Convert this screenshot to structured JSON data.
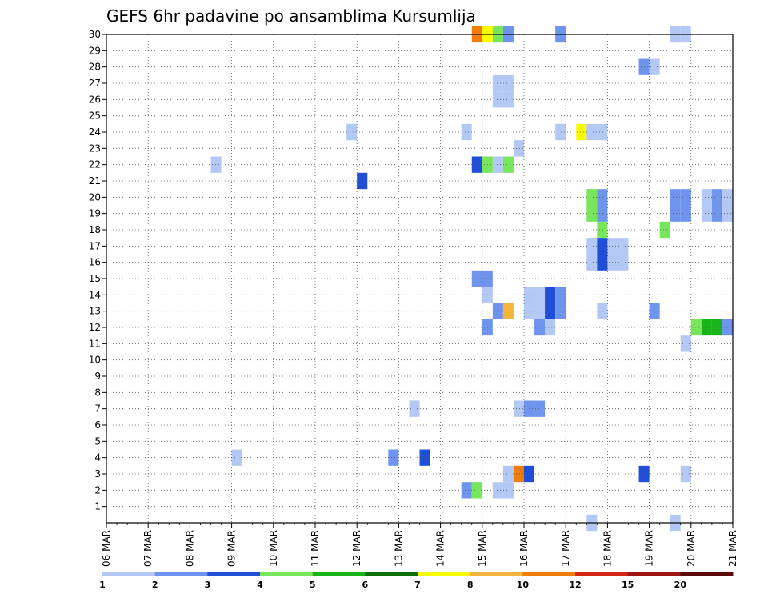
{
  "chart_data": {
    "type": "heatmap",
    "title": "GEFS 6hr padavine po ansamblima Kursumlija",
    "xlabel": "",
    "ylabel": "",
    "x_tick_labels": [
      "06 MAR",
      "07 MAR",
      "08 MAR",
      "09 MAR",
      "10 MAR",
      "11 MAR",
      "12 MAR",
      "13 MAR",
      "14 MAR",
      "15 MAR",
      "16 MAR",
      "17 MAR",
      "18 MAR",
      "19 MAR",
      "20 MAR",
      "21 MAR"
    ],
    "x_range_days": [
      0,
      15
    ],
    "y_tick_labels": [
      "1",
      "2",
      "3",
      "4",
      "5",
      "6",
      "7",
      "8",
      "9",
      "10",
      "11",
      "12",
      "13",
      "14",
      "15",
      "16",
      "17",
      "18",
      "19",
      "20",
      "21",
      "22",
      "23",
      "24",
      "25",
      "26",
      "27",
      "28",
      "29",
      "30"
    ],
    "y_range": [
      0,
      30
    ],
    "grid": true,
    "colorbar": {
      "labels": [
        "1",
        "2",
        "3",
        "4",
        "5",
        "6",
        "7",
        "8",
        "10",
        "12",
        "15",
        "20"
      ],
      "colors": [
        "#b4c8f5",
        "#6e94ee",
        "#1e4fd6",
        "#78e65a",
        "#19b419",
        "#0a6e0a",
        "#fafa00",
        "#f5b43c",
        "#f07c0a",
        "#d22814",
        "#a01414",
        "#5a0a0a"
      ]
    },
    "cell_width_days": 0.25,
    "cells": [
      {
        "member": 30,
        "day": 8.75,
        "class": 8
      },
      {
        "member": 30,
        "day": 9.0,
        "class": 6
      },
      {
        "member": 30,
        "day": 9.25,
        "class": 3
      },
      {
        "member": 30,
        "day": 9.5,
        "class": 1
      },
      {
        "member": 30,
        "day": 10.75,
        "class": 1
      },
      {
        "member": 30,
        "day": 13.5,
        "class": 0
      },
      {
        "member": 30,
        "day": 13.75,
        "class": 0
      },
      {
        "member": 28,
        "day": 12.75,
        "class": 1
      },
      {
        "member": 28,
        "day": 13.0,
        "class": 0
      },
      {
        "member": 27,
        "day": 9.25,
        "class": 0
      },
      {
        "member": 27,
        "day": 9.5,
        "class": 0
      },
      {
        "member": 26,
        "day": 9.25,
        "class": 0
      },
      {
        "member": 26,
        "day": 9.5,
        "class": 0
      },
      {
        "member": 24,
        "day": 5.75,
        "class": 0
      },
      {
        "member": 24,
        "day": 8.5,
        "class": 0
      },
      {
        "member": 24,
        "day": 10.75,
        "class": 0
      },
      {
        "member": 24,
        "day": 11.25,
        "class": 6
      },
      {
        "member": 24,
        "day": 11.5,
        "class": 0
      },
      {
        "member": 24,
        "day": 11.75,
        "class": 0
      },
      {
        "member": 23,
        "day": 9.75,
        "class": 0
      },
      {
        "member": 22,
        "day": 2.5,
        "class": 0
      },
      {
        "member": 22,
        "day": 8.75,
        "class": 2
      },
      {
        "member": 22,
        "day": 9.0,
        "class": 3
      },
      {
        "member": 22,
        "day": 9.25,
        "class": 0
      },
      {
        "member": 22,
        "day": 9.5,
        "class": 3
      },
      {
        "member": 21,
        "day": 6.0,
        "class": 2
      },
      {
        "member": 20,
        "day": 11.5,
        "class": 3
      },
      {
        "member": 20,
        "day": 11.75,
        "class": 1
      },
      {
        "member": 20,
        "day": 13.5,
        "class": 1
      },
      {
        "member": 20,
        "day": 13.75,
        "class": 1
      },
      {
        "member": 20,
        "day": 14.25,
        "class": 0
      },
      {
        "member": 20,
        "day": 14.5,
        "class": 1
      },
      {
        "member": 20,
        "day": 14.75,
        "class": 0
      },
      {
        "member": 19,
        "day": 11.5,
        "class": 3
      },
      {
        "member": 19,
        "day": 11.75,
        "class": 1
      },
      {
        "member": 19,
        "day": 13.5,
        "class": 1
      },
      {
        "member": 19,
        "day": 13.75,
        "class": 1
      },
      {
        "member": 19,
        "day": 14.25,
        "class": 0
      },
      {
        "member": 19,
        "day": 14.5,
        "class": 1
      },
      {
        "member": 19,
        "day": 14.75,
        "class": 0
      },
      {
        "member": 18,
        "day": 11.75,
        "class": 3
      },
      {
        "member": 18,
        "day": 13.25,
        "class": 3
      },
      {
        "member": 17,
        "day": 11.5,
        "class": 0
      },
      {
        "member": 17,
        "day": 11.75,
        "class": 2
      },
      {
        "member": 17,
        "day": 12.0,
        "class": 0
      },
      {
        "member": 17,
        "day": 12.25,
        "class": 0
      },
      {
        "member": 16,
        "day": 11.5,
        "class": 0
      },
      {
        "member": 16,
        "day": 11.75,
        "class": 2
      },
      {
        "member": 16,
        "day": 12.0,
        "class": 0
      },
      {
        "member": 16,
        "day": 12.25,
        "class": 0
      },
      {
        "member": 15,
        "day": 8.75,
        "class": 1
      },
      {
        "member": 15,
        "day": 9.0,
        "class": 1
      },
      {
        "member": 14,
        "day": 9.0,
        "class": 0
      },
      {
        "member": 14,
        "day": 10.0,
        "class": 0
      },
      {
        "member": 14,
        "day": 10.25,
        "class": 0
      },
      {
        "member": 14,
        "day": 10.5,
        "class": 2
      },
      {
        "member": 14,
        "day": 10.75,
        "class": 1
      },
      {
        "member": 13,
        "day": 9.25,
        "class": 1
      },
      {
        "member": 13,
        "day": 9.5,
        "class": 7
      },
      {
        "member": 13,
        "day": 10.0,
        "class": 0
      },
      {
        "member": 13,
        "day": 10.25,
        "class": 0
      },
      {
        "member": 13,
        "day": 10.5,
        "class": 2
      },
      {
        "member": 13,
        "day": 10.75,
        "class": 1
      },
      {
        "member": 13,
        "day": 11.75,
        "class": 0
      },
      {
        "member": 13,
        "day": 13.0,
        "class": 1
      },
      {
        "member": 12,
        "day": 9.0,
        "class": 1
      },
      {
        "member": 12,
        "day": 10.25,
        "class": 1
      },
      {
        "member": 12,
        "day": 10.5,
        "class": 0
      },
      {
        "member": 12,
        "day": 14.0,
        "class": 3
      },
      {
        "member": 12,
        "day": 14.25,
        "class": 4
      },
      {
        "member": 12,
        "day": 14.5,
        "class": 4
      },
      {
        "member": 12,
        "day": 14.75,
        "class": 1
      },
      {
        "member": 11,
        "day": 13.75,
        "class": 0
      },
      {
        "member": 7,
        "day": 7.25,
        "class": 0
      },
      {
        "member": 7,
        "day": 9.75,
        "class": 0
      },
      {
        "member": 7,
        "day": 10.0,
        "class": 1
      },
      {
        "member": 7,
        "day": 10.25,
        "class": 1
      },
      {
        "member": 4,
        "day": 3.0,
        "class": 0
      },
      {
        "member": 4,
        "day": 6.75,
        "class": 1
      },
      {
        "member": 4,
        "day": 7.5,
        "class": 2
      },
      {
        "member": 3,
        "day": 9.5,
        "class": 0
      },
      {
        "member": 3,
        "day": 9.75,
        "class": 8
      },
      {
        "member": 3,
        "day": 10.0,
        "class": 2
      },
      {
        "member": 3,
        "day": 12.75,
        "class": 2
      },
      {
        "member": 3,
        "day": 13.75,
        "class": 0
      },
      {
        "member": 2,
        "day": 8.5,
        "class": 1
      },
      {
        "member": 2,
        "day": 8.75,
        "class": 3
      },
      {
        "member": 2,
        "day": 9.25,
        "class": 0
      },
      {
        "member": 2,
        "day": 9.5,
        "class": 0
      },
      {
        "member": 0,
        "day": 11.5,
        "class": 0
      },
      {
        "member": 0,
        "day": 13.5,
        "class": 0
      }
    ]
  }
}
